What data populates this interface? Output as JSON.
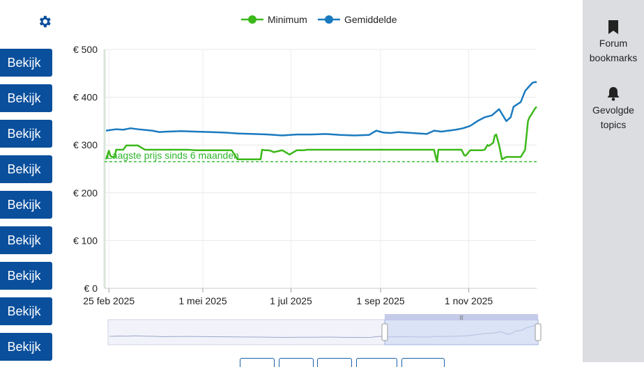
{
  "sidebar": {
    "buttons": [
      "Bekijk",
      "Bekijk",
      "Bekijk",
      "Bekijk",
      "Bekijk",
      "Bekijk",
      "Bekijk",
      "Bekijk",
      "Bekijk"
    ],
    "settings_icon": "gear-icon"
  },
  "right_panel": {
    "bookmarks": {
      "line1": "Forum",
      "line2": "bookmarks",
      "icon": "bookmark-icon"
    },
    "followed": {
      "line1": "Gevolgde",
      "line2": "topics",
      "icon": "bell-icon"
    }
  },
  "chart_data": {
    "type": "line",
    "title": "",
    "xlabel": "",
    "ylabel": "",
    "x_ticks": [
      "25 feb 2025",
      "1 mei 2025",
      "1 jul 2025",
      "1 sep 2025",
      "1 nov 2025"
    ],
    "x_tick_days": [
      0,
      65,
      126,
      188,
      249
    ],
    "x_range_days": [
      -3,
      296
    ],
    "y_ticks": [
      "€ 0",
      "€ 100",
      "€ 200",
      "€ 300",
      "€ 400",
      "€ 500"
    ],
    "ylim": [
      0,
      500
    ],
    "grid": true,
    "legend_position": "top",
    "reference_line": {
      "label": "Laagste prijs sinds 6 maanden",
      "value": 265,
      "color": "#2db52d"
    },
    "series": [
      {
        "name": "Minimum",
        "color": "#3cb81a",
        "x": [
          -2,
          0,
          1,
          2,
          4,
          5,
          10,
          12,
          15,
          20,
          25,
          30,
          40,
          50,
          55,
          60,
          70,
          80,
          85,
          89,
          90,
          95,
          100,
          105,
          106,
          108,
          110,
          112,
          114,
          120,
          125,
          130,
          135,
          137,
          140,
          145,
          150,
          155,
          160,
          165,
          170,
          175,
          180,
          190,
          200,
          210,
          220,
          225,
          227,
          228,
          230,
          235,
          240,
          244,
          246,
          247,
          250,
          255,
          258,
          260,
          262,
          263,
          266,
          267,
          268,
          270,
          272,
          275,
          276,
          280,
          285,
          288,
          290,
          291,
          292,
          295,
          296
        ],
        "y": [
          270,
          288,
          278,
          275,
          275,
          290,
          290,
          299,
          299,
          299,
          290,
          290,
          290,
          290,
          290,
          289,
          289,
          289,
          289,
          270,
          270,
          270,
          270,
          270,
          290,
          289,
          289,
          288,
          285,
          289,
          280,
          289,
          289,
          290,
          290,
          290,
          290,
          290,
          290,
          290,
          290,
          290,
          290,
          290,
          290,
          290,
          290,
          290,
          265,
          290,
          290,
          290,
          290,
          290,
          278,
          278,
          289,
          289,
          289,
          290,
          300,
          298,
          305,
          320,
          322,
          300,
          270,
          275,
          275,
          275,
          275,
          290,
          350,
          358,
          362,
          377,
          380
        ]
      },
      {
        "name": "Gemiddelde",
        "color": "#1a7abf",
        "x": [
          -2,
          5,
          10,
          15,
          20,
          30,
          35,
          40,
          50,
          60,
          70,
          80,
          90,
          100,
          110,
          120,
          130,
          140,
          150,
          160,
          170,
          180,
          185,
          190,
          195,
          200,
          210,
          220,
          225,
          230,
          235,
          240,
          245,
          250,
          255,
          260,
          265,
          270,
          275,
          278,
          280,
          285,
          288,
          290,
          293,
          295,
          296
        ],
        "y": [
          330,
          333,
          332,
          335,
          333,
          330,
          327,
          328,
          329,
          328,
          327,
          326,
          324,
          323,
          322,
          320,
          322,
          322,
          323,
          321,
          320,
          321,
          330,
          326,
          325,
          327,
          325,
          323,
          330,
          328,
          330,
          332,
          335,
          340,
          350,
          358,
          362,
          375,
          350,
          358,
          380,
          390,
          413,
          420,
          430,
          432,
          431
        ]
      }
    ]
  }
}
